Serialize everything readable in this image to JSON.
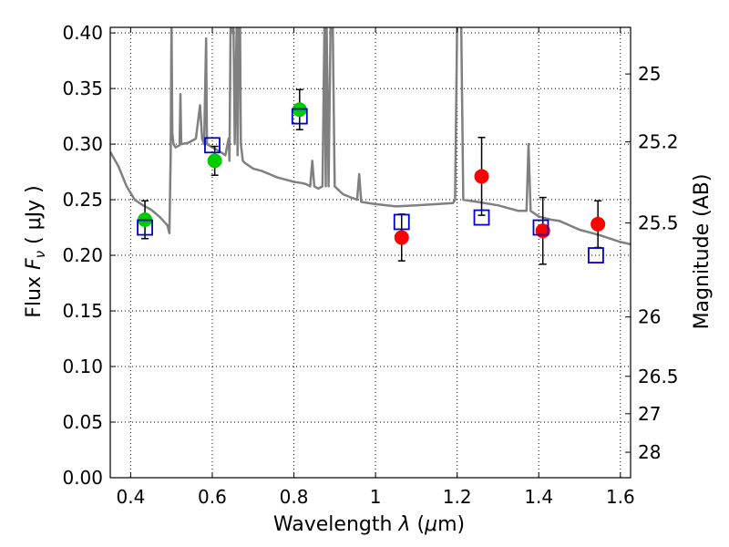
{
  "chart_data": {
    "type": "scatter",
    "xlabel_text": "Wavelength",
    "xlabel_symbol": "λ",
    "xlabel_unit_open": "(",
    "xlabel_unit_mu": "μ",
    "xlabel_unit_rest": "m)",
    "ylabel_text": "Flux",
    "ylabel_symbol": "F",
    "ylabel_sub": "ν",
    "ylabel_unit": "( μJy )",
    "y2label": "Magnitude (AB)",
    "xlim": [
      0.35,
      1.625
    ],
    "ylim": [
      0.0,
      0.405
    ],
    "grid": true,
    "x_ticks": [
      {
        "v": 0.4,
        "label": "0.4"
      },
      {
        "v": 0.6,
        "label": "0.6"
      },
      {
        "v": 0.8,
        "label": "0.8"
      },
      {
        "v": 1.0,
        "label": "1"
      },
      {
        "v": 1.2,
        "label": "1.2"
      },
      {
        "v": 1.4,
        "label": "1.4"
      },
      {
        "v": 1.6,
        "label": "1.6"
      }
    ],
    "y_ticks": [
      {
        "v": 0.0,
        "label": "0.00"
      },
      {
        "v": 0.05,
        "label": "0.05"
      },
      {
        "v": 0.1,
        "label": "0.10"
      },
      {
        "v": 0.15,
        "label": "0.15"
      },
      {
        "v": 0.2,
        "label": "0.20"
      },
      {
        "v": 0.25,
        "label": "0.25"
      },
      {
        "v": 0.3,
        "label": "0.30"
      },
      {
        "v": 0.35,
        "label": "0.35"
      },
      {
        "v": 0.4,
        "label": "0.40"
      }
    ],
    "mag_ticks": [
      {
        "v": 25,
        "label": "25"
      },
      {
        "v": 25.2,
        "label": "25.2"
      },
      {
        "v": 25.5,
        "label": "25.5"
      },
      {
        "v": 26,
        "label": "26"
      },
      {
        "v": 26.5,
        "label": "26.5"
      },
      {
        "v": 27,
        "label": "27"
      },
      {
        "v": 28,
        "label": "28"
      }
    ],
    "series": [
      {
        "color": "#00cc00",
        "marker": "circle",
        "points": [
          {
            "x": 0.435,
            "y": 0.232,
            "err": 0.017
          },
          {
            "x": 0.606,
            "y": 0.285,
            "err": 0.013
          },
          {
            "x": 0.814,
            "y": 0.331,
            "err": 0.018
          }
        ]
      },
      {
        "color": "#ff0000",
        "marker": "circle",
        "points": [
          {
            "x": 1.064,
            "y": 0.216,
            "err": 0.021
          },
          {
            "x": 1.26,
            "y": 0.271,
            "err": 0.035
          },
          {
            "x": 1.41,
            "y": 0.222,
            "err": 0.03
          },
          {
            "x": 1.545,
            "y": 0.228,
            "err": 0.021
          }
        ]
      },
      {
        "color": "#0000cc",
        "marker": "open-square",
        "points": [
          {
            "x": 0.435,
            "y": 0.225
          },
          {
            "x": 0.6,
            "y": 0.299
          },
          {
            "x": 0.814,
            "y": 0.325
          },
          {
            "x": 1.064,
            "y": 0.23
          },
          {
            "x": 1.26,
            "y": 0.234
          },
          {
            "x": 1.405,
            "y": 0.225
          },
          {
            "x": 1.54,
            "y": 0.2
          }
        ]
      }
    ],
    "model_spectrum": {
      "color": "#808080",
      "points": [
        [
          0.35,
          0.293
        ],
        [
          0.37,
          0.28
        ],
        [
          0.39,
          0.262
        ],
        [
          0.41,
          0.25
        ],
        [
          0.43,
          0.245
        ],
        [
          0.45,
          0.241
        ],
        [
          0.47,
          0.235
        ],
        [
          0.485,
          0.229
        ],
        [
          0.49,
          0.227
        ],
        [
          0.495,
          0.22
        ],
        [
          0.498,
          0.29
        ],
        [
          0.5,
          0.41
        ],
        [
          0.502,
          0.31
        ],
        [
          0.505,
          0.3
        ],
        [
          0.51,
          0.297
        ],
        [
          0.52,
          0.299
        ],
        [
          0.522,
          0.345
        ],
        [
          0.524,
          0.3
        ],
        [
          0.54,
          0.301
        ],
        [
          0.56,
          0.305
        ],
        [
          0.57,
          0.335
        ],
        [
          0.575,
          0.305
        ],
        [
          0.58,
          0.3
        ],
        [
          0.585,
          0.395
        ],
        [
          0.587,
          0.3
        ],
        [
          0.6,
          0.297
        ],
        [
          0.62,
          0.293
        ],
        [
          0.632,
          0.29
        ],
        [
          0.64,
          0.305
        ],
        [
          0.642,
          0.285
        ],
        [
          0.645,
          0.41
        ],
        [
          0.648,
          0.41
        ],
        [
          0.65,
          0.4
        ],
        [
          0.652,
          0.41
        ],
        [
          0.655,
          0.3
        ],
        [
          0.66,
          0.41
        ],
        [
          0.662,
          0.29
        ],
        [
          0.665,
          0.41
        ],
        [
          0.668,
          0.41
        ],
        [
          0.67,
          0.3
        ],
        [
          0.675,
          0.285
        ],
        [
          0.68,
          0.283
        ],
        [
          0.7,
          0.278
        ],
        [
          0.72,
          0.276
        ],
        [
          0.74,
          0.273
        ],
        [
          0.76,
          0.27
        ],
        [
          0.78,
          0.268
        ],
        [
          0.8,
          0.266
        ],
        [
          0.82,
          0.265
        ],
        [
          0.83,
          0.264
        ],
        [
          0.84,
          0.262
        ],
        [
          0.845,
          0.285
        ],
        [
          0.85,
          0.262
        ],
        [
          0.86,
          0.26
        ],
        [
          0.87,
          0.262
        ],
        [
          0.875,
          0.41
        ],
        [
          0.878,
          0.262
        ],
        [
          0.88,
          0.41
        ],
        [
          0.885,
          0.262
        ],
        [
          0.89,
          0.41
        ],
        [
          0.895,
          0.41
        ],
        [
          0.9,
          0.262
        ],
        [
          0.92,
          0.255
        ],
        [
          0.94,
          0.252
        ],
        [
          0.955,
          0.25
        ],
        [
          0.96,
          0.273
        ],
        [
          0.965,
          0.248
        ],
        [
          1.0,
          0.246
        ],
        [
          1.05,
          0.244
        ],
        [
          1.1,
          0.245
        ],
        [
          1.15,
          0.246
        ],
        [
          1.19,
          0.247
        ],
        [
          1.195,
          0.25
        ],
        [
          1.2,
          0.41
        ],
        [
          1.21,
          0.41
        ],
        [
          1.215,
          0.25
        ],
        [
          1.25,
          0.248
        ],
        [
          1.3,
          0.245
        ],
        [
          1.35,
          0.24
        ],
        [
          1.37,
          0.24
        ],
        [
          1.375,
          0.3
        ],
        [
          1.38,
          0.24
        ],
        [
          1.4,
          0.235
        ],
        [
          1.43,
          0.232
        ],
        [
          1.45,
          0.231
        ],
        [
          1.5,
          0.223
        ],
        [
          1.55,
          0.218
        ],
        [
          1.6,
          0.212
        ],
        [
          1.625,
          0.21
        ]
      ]
    }
  }
}
